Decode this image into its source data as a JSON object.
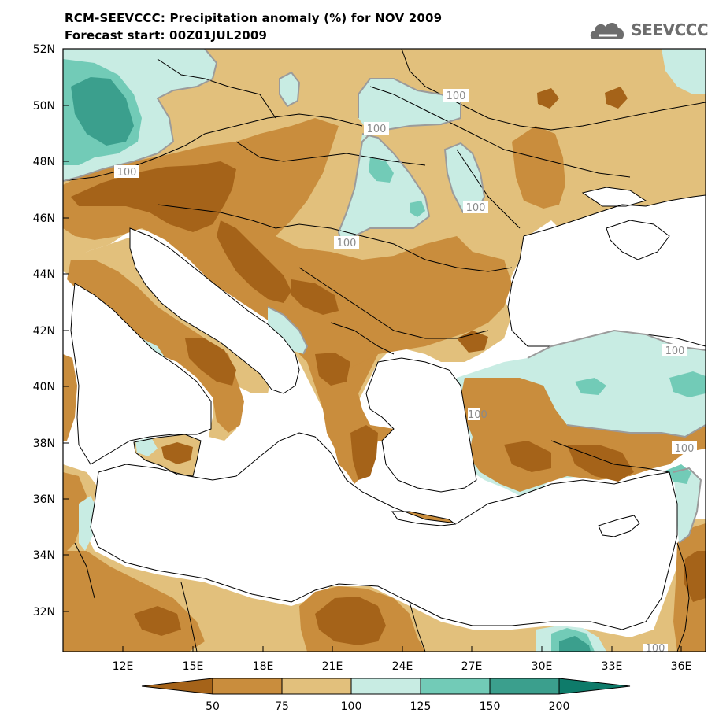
{
  "header": {
    "title": "RCM-SEEVCCC: Precipitation anomaly (%) for NOV 2009",
    "subtitle": "Forecast start: 00Z01JUL2009"
  },
  "logo": {
    "text": "SEEVCCC",
    "icon": "cloud-icon"
  },
  "axes": {
    "y_ticks": [
      "52N",
      "50N",
      "48N",
      "46N",
      "44N",
      "42N",
      "40N",
      "38N",
      "36N",
      "34N",
      "32N"
    ],
    "x_ticks": [
      "12E",
      "15E",
      "18E",
      "21E",
      "24E",
      "27E",
      "30E",
      "33E",
      "36E"
    ]
  },
  "contour_labels": [
    "100",
    "100",
    "100",
    "100",
    "100",
    "100",
    "100",
    "100",
    "100"
  ],
  "legend": {
    "labels": [
      "50",
      "75",
      "100",
      "125",
      "150",
      "200"
    ],
    "colors": [
      "#a56319",
      "#c98d3d",
      "#e2c07c",
      "#c8ece3",
      "#72cbb7",
      "#3b9f8d",
      "#0e7b6a"
    ]
  },
  "colors": {
    "sea": "#ffffff",
    "very_dry": "#a56319",
    "dry": "#c98d3d",
    "slightly_dry": "#e2c07c",
    "slightly_wet": "#c8ece3",
    "wet": "#72cbb7",
    "very_wet": "#3b9f8d"
  }
}
